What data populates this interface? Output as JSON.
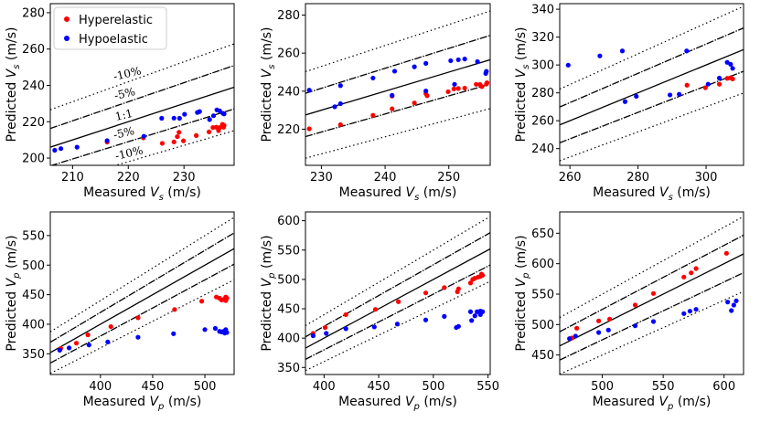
{
  "chart_data": [
    {
      "type": "scatter",
      "xlabel": "Measured V_s (m/s)",
      "ylabel": "Predicted V_s (m/s)",
      "xlim": [
        206,
        239
      ],
      "ylim": [
        196,
        285
      ],
      "xticks": [
        210,
        220,
        230
      ],
      "yticks": [
        200,
        220,
        240,
        260,
        280
      ],
      "legend": {
        "position": "top-left",
        "entries": [
          "Hyperelastic",
          "Hypoelastic"
        ]
      },
      "annotations": {
        "p10": "-10%",
        "p5": "-5%",
        "one": "1:1",
        "m5": "-5%",
        "m10": "-10%"
      },
      "series": [
        {
          "name": "Hyperelastic",
          "color": "#ff0000",
          "points": [
            [
              216.2,
              208.8
            ],
            [
              222.7,
              211.1
            ],
            [
              226.1,
              208.1
            ],
            [
              228.2,
              208.9
            ],
            [
              228.8,
              211.8
            ],
            [
              229.1,
              214.2
            ],
            [
              229.9,
              209.5
            ],
            [
              232.2,
              212.4
            ],
            [
              234.5,
              214.4
            ],
            [
              235.2,
              216.8
            ],
            [
              235.8,
              217.0
            ],
            [
              236.2,
              215.1
            ],
            [
              236.4,
              216.8
            ],
            [
              237.1,
              217.0
            ],
            [
              237.2,
              218.0
            ],
            [
              236.9,
              218.6
            ]
          ]
        },
        {
          "name": "Hypoelastic",
          "color": "#0000ff",
          "points": [
            [
              206.8,
              204.3
            ],
            [
              207.9,
              205.2
            ],
            [
              210.8,
              206.0
            ],
            [
              216.2,
              209.6
            ],
            [
              222.8,
              212.0
            ],
            [
              226.0,
              221.9
            ],
            [
              228.2,
              222.0
            ],
            [
              229.2,
              221.9
            ],
            [
              230.1,
              224.1
            ],
            [
              232.4,
              225.1
            ],
            [
              232.8,
              225.6
            ],
            [
              234.6,
              221.2
            ],
            [
              235.3,
              223.3
            ],
            [
              235.9,
              226.5
            ],
            [
              236.4,
              226.0
            ],
            [
              237.0,
              224.6
            ],
            [
              237.2,
              224.3
            ]
          ]
        }
      ]
    },
    {
      "type": "scatter",
      "xlabel": "Measured V_s (m/s)",
      "ylabel": "Predicted V_s (m/s)",
      "xlim": [
        227.5,
        256.5
      ],
      "ylim": [
        201,
        286
      ],
      "xticks": [
        230,
        240,
        250
      ],
      "yticks": [
        220,
        240,
        260,
        280
      ],
      "series": [
        {
          "name": "Hyperelastic",
          "color": "#ff0000",
          "points": [
            [
              228.1,
              220.2
            ],
            [
              233.0,
              222.4
            ],
            [
              238.1,
              227.3
            ],
            [
              241.1,
              230.7
            ],
            [
              241.1,
              237.4
            ],
            [
              244.6,
              233.8
            ],
            [
              246.4,
              238.7
            ],
            [
              246.6,
              237.6
            ],
            [
              249.9,
              239.7
            ],
            [
              250.8,
              241.2
            ],
            [
              251.5,
              241.4
            ],
            [
              252.5,
              241.6
            ],
            [
              254.3,
              243.6
            ],
            [
              254.9,
              243.5
            ],
            [
              255.2,
              242.4
            ],
            [
              255.9,
              243.7
            ],
            [
              256.0,
              244.4
            ]
          ]
        },
        {
          "name": "Hypoelastic",
          "color": "#0000ff",
          "points": [
            [
              228.1,
              240.5
            ],
            [
              232.1,
              231.8
            ],
            [
              233.0,
              242.9
            ],
            [
              233.0,
              233.4
            ],
            [
              238.1,
              246.9
            ],
            [
              241.1,
              237.8
            ],
            [
              241.5,
              250.5
            ],
            [
              244.6,
              252.8
            ],
            [
              246.4,
              254.6
            ],
            [
              246.4,
              240.1
            ],
            [
              250.3,
              256.0
            ],
            [
              250.9,
              243.6
            ],
            [
              251.5,
              256.5
            ],
            [
              252.5,
              256.9
            ],
            [
              254.5,
              255.5
            ],
            [
              255.8,
              249.3
            ],
            [
              255.9,
              250.4
            ]
          ]
        }
      ]
    },
    {
      "type": "scatter",
      "xlabel": "Measured V_s (m/s)",
      "ylabel": "Predicted V_s (m/s)",
      "xlim": [
        257,
        311
      ],
      "ylim": [
        228,
        344
      ],
      "xticks": [
        260,
        280,
        300
      ],
      "yticks": [
        240,
        260,
        280,
        300,
        320,
        340
      ],
      "series": [
        {
          "name": "Hyperelastic",
          "color": "#ff0000",
          "points": [
            [
              294.4,
              285.5
            ],
            [
              299.8,
              283.7
            ],
            [
              303.9,
              286.2
            ],
            [
              306.2,
              290.4
            ],
            [
              307.1,
              290.8
            ],
            [
              307.8,
              290.0
            ]
          ]
        },
        {
          "name": "Hypoelastic",
          "color": "#0000ff",
          "points": [
            [
              259.5,
              299.9
            ],
            [
              268.8,
              306.5
            ],
            [
              275.4,
              310.1
            ],
            [
              276.2,
              273.7
            ],
            [
              279.5,
              277.5
            ],
            [
              289.4,
              278.5
            ],
            [
              292.1,
              279.0
            ],
            [
              294.3,
              310.1
            ],
            [
              300.6,
              286.2
            ],
            [
              303.9,
              290.6
            ],
            [
              306.2,
              301.9
            ],
            [
              307.2,
              300.5
            ],
            [
              307.8,
              297.6
            ]
          ]
        }
      ]
    },
    {
      "type": "scatter",
      "xlabel": "Measured V_p (m/s)",
      "ylabel": "Predicted V_p (m/s)",
      "xlim": [
        352,
        528
      ],
      "ylim": [
        315,
        590
      ],
      "xticks": [
        400,
        450,
        500
      ],
      "yticks": [
        350,
        400,
        450,
        500,
        550
      ],
      "series": [
        {
          "name": "Hyperelastic",
          "color": "#ff0000",
          "points": [
            [
              362,
              359
            ],
            [
              377,
              368
            ],
            [
              388,
              382
            ],
            [
              410,
              396
            ],
            [
              436,
              411
            ],
            [
              471,
              425
            ],
            [
              497,
              439
            ],
            [
              511,
              446
            ],
            [
              514,
              444
            ],
            [
              516,
              441
            ],
            [
              518,
              442
            ],
            [
              520,
              440
            ],
            [
              520,
              446
            ],
            [
              521,
              444
            ]
          ]
        },
        {
          "name": "Hypoelastic",
          "color": "#0000ff",
          "points": [
            [
              361,
              356
            ],
            [
              370,
              360
            ],
            [
              389,
              365
            ],
            [
              407,
              370
            ],
            [
              436,
              378
            ],
            [
              470,
              384
            ],
            [
              500,
              391
            ],
            [
              510,
              393
            ],
            [
              514,
              388
            ],
            [
              516,
              387
            ],
            [
              518,
              388
            ],
            [
              520,
              391
            ],
            [
              521,
              386
            ],
            [
              519,
              385
            ]
          ]
        }
      ]
    },
    {
      "type": "scatter",
      "xlabel": "Measured V_p (m/s)",
      "ylabel": "Predicted V_p (m/s)",
      "xlim": [
        383,
        552
      ],
      "ylim": [
        338,
        615
      ],
      "xticks": [
        400,
        450,
        500,
        550
      ],
      "yticks": [
        350,
        400,
        450,
        500,
        550,
        600
      ],
      "series": [
        {
          "name": "Hyperelastic",
          "color": "#ff0000",
          "points": [
            [
              390,
              408
            ],
            [
              401,
              418
            ],
            [
              420,
              440
            ],
            [
              447,
              449
            ],
            [
              468,
              462
            ],
            [
              493,
              477
            ],
            [
              510,
              486
            ],
            [
              522,
              479
            ],
            [
              523,
              484
            ],
            [
              534,
              494
            ],
            [
              536,
              500
            ],
            [
              538,
              502
            ],
            [
              541,
              504
            ],
            [
              543,
              505
            ],
            [
              545,
              507
            ],
            [
              544,
              509
            ]
          ]
        },
        {
          "name": "Hypoelastic",
          "color": "#0000ff",
          "points": [
            [
              390,
              404
            ],
            [
              402,
              408
            ],
            [
              420,
              416
            ],
            [
              446,
              419
            ],
            [
              467,
              424
            ],
            [
              493,
              431
            ],
            [
              510,
              437
            ],
            [
              521,
              418
            ],
            [
              523,
              420
            ],
            [
              534,
              445
            ],
            [
              535,
              430
            ],
            [
              538,
              438
            ],
            [
              540,
              445
            ],
            [
              543,
              440
            ],
            [
              545,
              445
            ],
            [
              543,
              446
            ]
          ]
        }
      ]
    },
    {
      "type": "scatter",
      "xlabel": "Measured V_p (m/s)",
      "ylabel": "Predicted V_p (m/s)",
      "xlim": [
        465,
        616
      ],
      "ylim": [
        418,
        685
      ],
      "xticks": [
        500,
        550,
        600
      ],
      "yticks": [
        450,
        500,
        550,
        600,
        650
      ],
      "series": [
        {
          "name": "Hyperelastic",
          "color": "#ff0000",
          "points": [
            [
              475,
              478
            ],
            [
              479,
              494
            ],
            [
              497,
              506
            ],
            [
              506,
              509
            ],
            [
              527,
              532
            ],
            [
              542,
              551
            ],
            [
              567,
              578
            ],
            [
              573,
              585
            ],
            [
              577,
              592
            ],
            [
              602,
              617
            ]
          ]
        },
        {
          "name": "Hypoelastic",
          "color": "#0000ff",
          "points": [
            [
              473,
              477
            ],
            [
              478,
              481
            ],
            [
              497,
              487
            ],
            [
              505,
              491
            ],
            [
              527,
              498
            ],
            [
              542,
              505
            ],
            [
              567,
              518
            ],
            [
              572,
              522
            ],
            [
              577,
              525
            ],
            [
              603,
              537
            ],
            [
              606,
              523
            ],
            [
              608,
              532
            ],
            [
              610,
              539
            ]
          ]
        }
      ]
    }
  ]
}
